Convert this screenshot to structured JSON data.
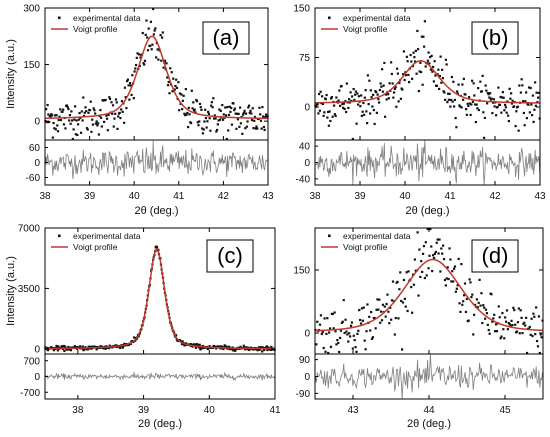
{
  "colors": {
    "fit": "#c0392b",
    "data": "#111111",
    "residual": "#808080"
  },
  "chart_data": [
    {
      "panel": "(a)",
      "type": "scatter",
      "legend": [
        "experimental data",
        "Voigt profile"
      ],
      "xlabel": "2θ (deg.)",
      "ylabel": "Intensity (a.u.)",
      "xlim": [
        38,
        43
      ],
      "ylim": [
        -50,
        300
      ],
      "xticks": [
        "38",
        "39",
        "40",
        "41",
        "42",
        "43"
      ],
      "yticks": [
        "0",
        "150",
        "300"
      ],
      "ytick_values": [
        0,
        150,
        300
      ],
      "res_ylim": [
        -90,
        90
      ],
      "res_ticks": [
        "60",
        "0",
        "-60"
      ],
      "res_tick_values": [
        60,
        0,
        -60
      ],
      "fit": {
        "center": 40.4,
        "amplitude": 220,
        "hwhm": 0.38,
        "eta": 0.5,
        "baseline": 5
      },
      "noise": 25,
      "npoints": 300
    },
    {
      "panel": "(b)",
      "type": "scatter",
      "legend": [
        "experimental data",
        "Voigt profile"
      ],
      "xlabel": "2θ (deg.)",
      "ylabel": "",
      "xlim": [
        38,
        43
      ],
      "ylim": [
        -50,
        150
      ],
      "xticks": [
        "38",
        "39",
        "40",
        "41",
        "42",
        "43"
      ],
      "yticks": [
        "0",
        "75",
        "150"
      ],
      "ytick_values": [
        0,
        75,
        150
      ],
      "res_ylim": [
        -55,
        55
      ],
      "res_ticks": [
        "40",
        "0",
        "-40"
      ],
      "res_tick_values": [
        40,
        0,
        -40
      ],
      "fit": {
        "center": 40.35,
        "amplitude": 65,
        "hwhm": 0.5,
        "eta": 0.5,
        "baseline": 5
      },
      "noise": 16,
      "npoints": 300
    },
    {
      "panel": "(c)",
      "type": "scatter",
      "legend": [
        "experimental data",
        "Voigt profile"
      ],
      "xlabel": "2θ (deg.)",
      "ylabel": "Intensity (a.u.)",
      "xlim": [
        37.5,
        41
      ],
      "ylim": [
        -300,
        7000
      ],
      "xticks": [
        "38",
        "39",
        "40",
        "41"
      ],
      "xtick_values": [
        38,
        39,
        40,
        41
      ],
      "yticks": [
        "0",
        "3500",
        "7000"
      ],
      "ytick_values": [
        0,
        3500,
        7000
      ],
      "res_ylim": [
        -1000,
        1000
      ],
      "res_ticks": [
        "700",
        "0",
        "-700"
      ],
      "res_tick_values": [
        700,
        0,
        -700
      ],
      "fit": {
        "center": 39.2,
        "amplitude": 5800,
        "hwhm": 0.14,
        "eta": 0.5,
        "baseline": 0
      },
      "noise": 60,
      "npoints": 350
    },
    {
      "panel": "(d)",
      "type": "scatter",
      "legend": [
        "experimental data",
        "Voigt profile"
      ],
      "xlabel": "2θ (deg.)",
      "ylabel": "",
      "xlim": [
        42.5,
        45.5
      ],
      "ylim": [
        -50,
        250
      ],
      "xticks": [
        "43",
        "44",
        "45"
      ],
      "xtick_values": [
        43,
        44,
        45
      ],
      "yticks": [
        "0",
        "150"
      ],
      "ytick_values": [
        0,
        150
      ],
      "res_ylim": [
        -120,
        120
      ],
      "res_ticks": [
        "90",
        "0",
        "-90"
      ],
      "res_tick_values": [
        90,
        0,
        -90
      ],
      "fit": {
        "center": 44.05,
        "amplitude": 175,
        "hwhm": 0.45,
        "eta": 0.4,
        "baseline": 0
      },
      "noise": 28,
      "npoints": 250
    }
  ]
}
